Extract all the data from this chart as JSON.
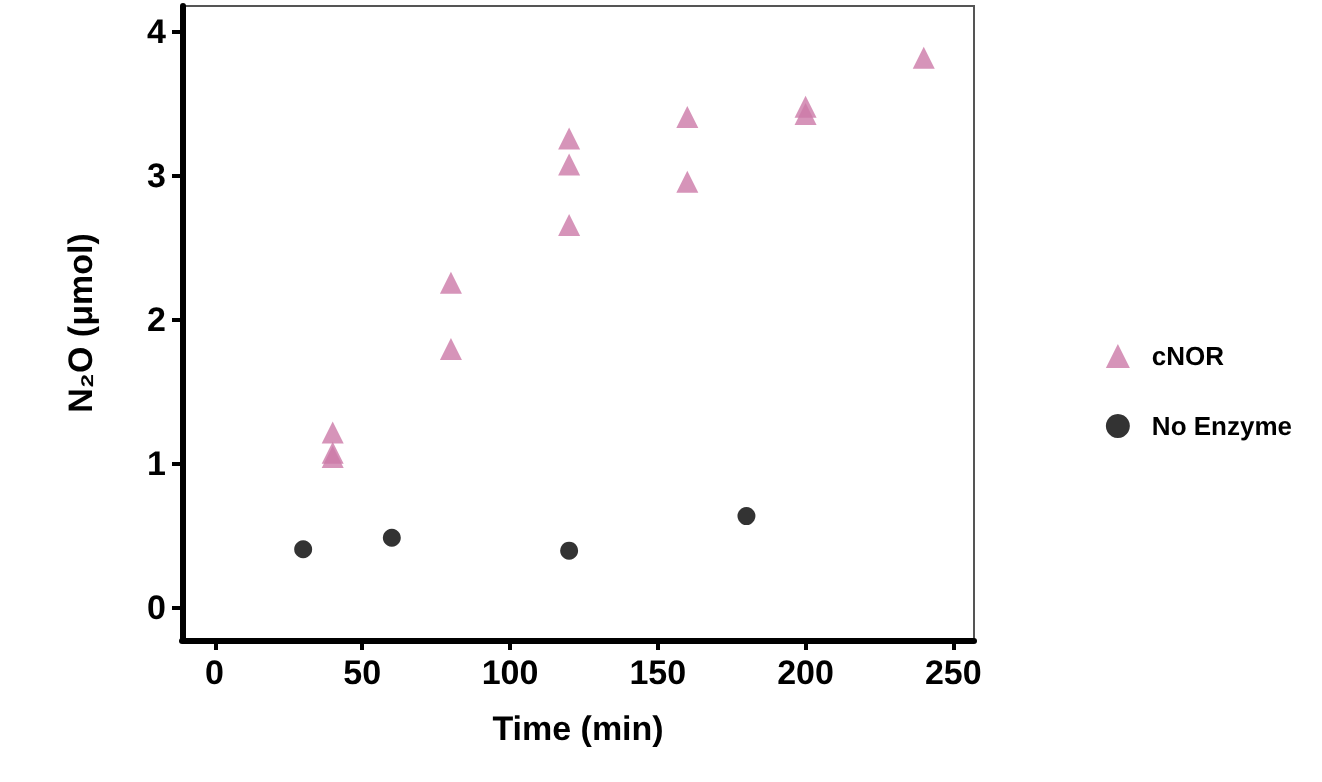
{
  "chart_data": {
    "type": "scatter",
    "xlabel": "Time (min)",
    "ylabel": "N₂O (μmol)",
    "xlim": [
      -11,
      257
    ],
    "ylim": [
      -0.22,
      4.18
    ],
    "xticks": [
      0,
      50,
      100,
      150,
      200,
      250
    ],
    "yticks": [
      0,
      1,
      2,
      3,
      4
    ],
    "grid": false,
    "legend": "right",
    "series": [
      {
        "name": "cNOR",
        "color": "#cc79a7",
        "marker": "triangle",
        "x": [
          40,
          40,
          40,
          80,
          80,
          120,
          120,
          120,
          160,
          160,
          200,
          200,
          240
        ],
        "values": [
          1.22,
          1.08,
          1.05,
          2.26,
          1.8,
          3.26,
          3.08,
          2.66,
          3.41,
          2.96,
          3.48,
          3.43,
          3.82
        ]
      },
      {
        "name": "No Enzyme",
        "color": "#000000",
        "marker": "circle",
        "x": [
          30,
          60,
          120,
          180
        ],
        "values": [
          0.41,
          0.49,
          0.4,
          0.64
        ]
      }
    ]
  }
}
